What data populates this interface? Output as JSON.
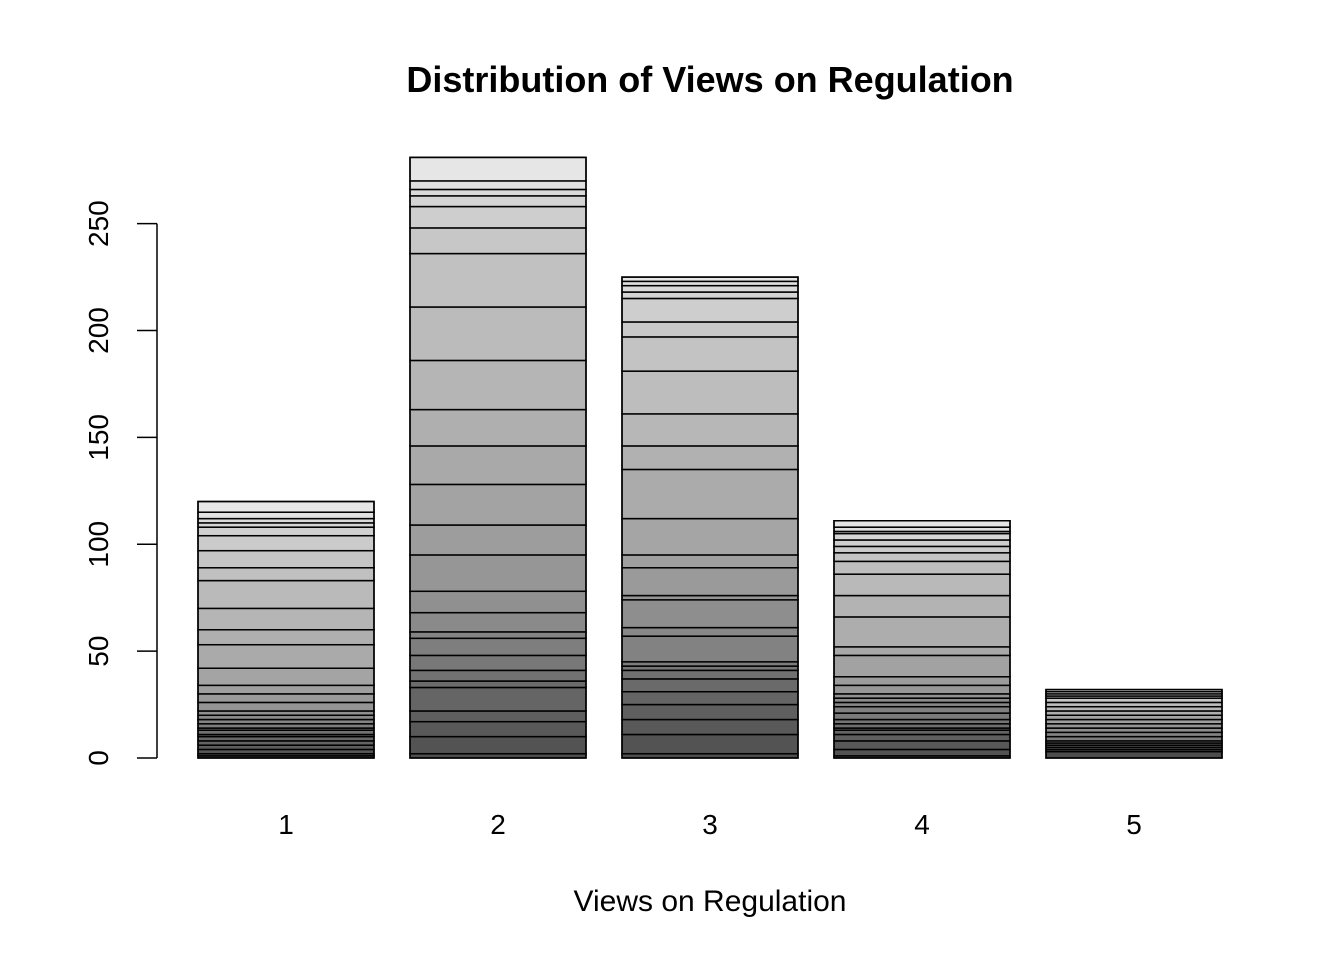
{
  "chart_data": {
    "type": "bar",
    "title": "Distribution of Views on Regulation",
    "xlabel": "Views on Regulation",
    "ylabel": "",
    "categories": [
      "1",
      "2",
      "3",
      "4",
      "5"
    ],
    "values": [
      120,
      281,
      225,
      111,
      32
    ],
    "ylim": [
      0,
      281
    ],
    "yticks": [
      "0",
      "50",
      "100",
      "150",
      "200",
      "250"
    ],
    "grid": false,
    "legend": "none",
    "stacked": true,
    "segments": [
      [
        0,
        1,
        2,
        4,
        6,
        8,
        10,
        11,
        13,
        14,
        16,
        18,
        20,
        22,
        26,
        30,
        34,
        42,
        53,
        60,
        70,
        83,
        89,
        97,
        104,
        108,
        110,
        112,
        115,
        120
      ],
      [
        0,
        2,
        10,
        17,
        22,
        33,
        36,
        41,
        48,
        56,
        59,
        68,
        78,
        95,
        109,
        128,
        146,
        163,
        186,
        211,
        236,
        248,
        258,
        263,
        266,
        270,
        281
      ],
      [
        0,
        2,
        11,
        18,
        25,
        31,
        37,
        41,
        43,
        45,
        57,
        61,
        74,
        76,
        89,
        95,
        112,
        135,
        146,
        161,
        181,
        197,
        204,
        215,
        218,
        221,
        223,
        225
      ],
      [
        0,
        1,
        4,
        8,
        11,
        13,
        14,
        16,
        18,
        21,
        24,
        26,
        28,
        30,
        34,
        38,
        48,
        52,
        66,
        76,
        86,
        92,
        96,
        99,
        102,
        105,
        106,
        108,
        111
      ],
      [
        0,
        3,
        4,
        5,
        6,
        7,
        8,
        10,
        12,
        14,
        16,
        18,
        20,
        22,
        24,
        26,
        28,
        29,
        30,
        31,
        32
      ]
    ]
  },
  "colors": {
    "segment_dark": "#4d4d4d",
    "segment_light": "#e6e6e6",
    "stroke": "#000000"
  }
}
